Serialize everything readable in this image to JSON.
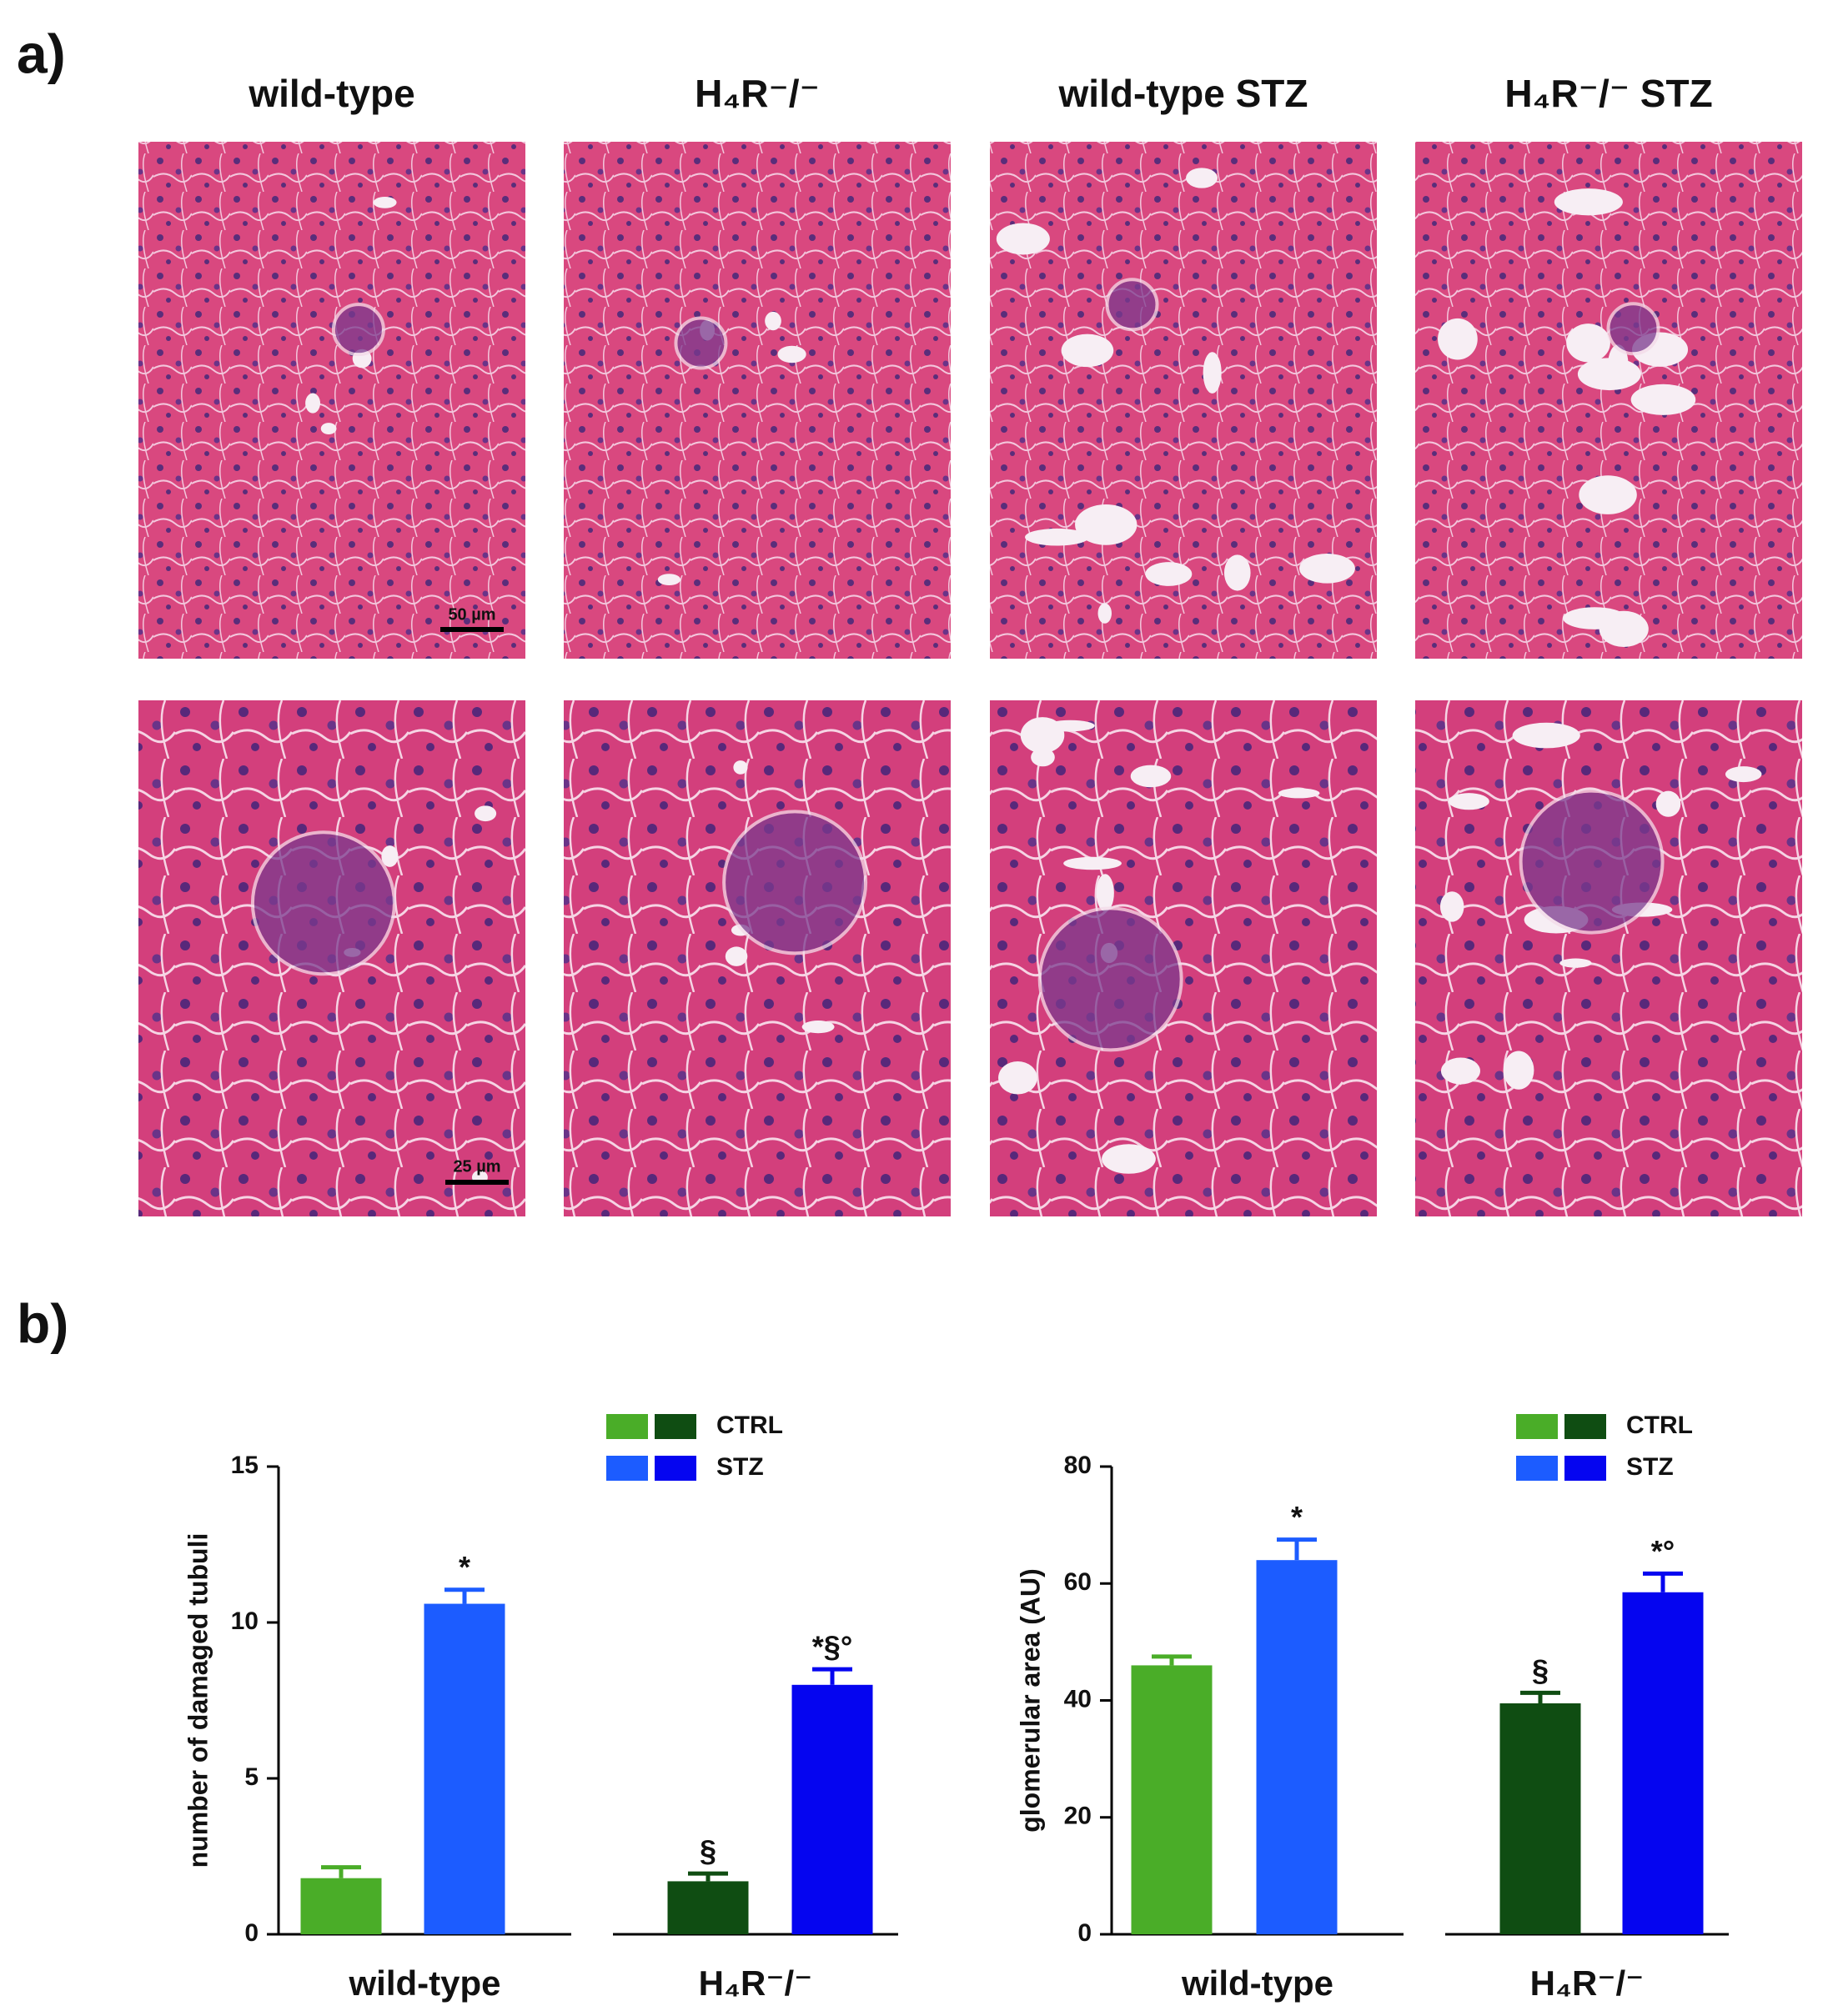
{
  "panel_a": {
    "label": "a)",
    "columns": [
      "wild-type",
      "H₄R⁻/⁻",
      "wild-type STZ",
      "H₄R⁻/⁻ STZ"
    ],
    "scale_bars": [
      "50 µm",
      "25 µm"
    ]
  },
  "panel_b": {
    "label": "b)"
  },
  "chart_data": [
    {
      "type": "bar",
      "y_label": "number of damaged tubuli",
      "categories": [
        "wild-type",
        "H₄R⁻/⁻"
      ],
      "series": [
        {
          "name": "CTRL",
          "colors": [
            "#4aad28",
            "#0f4d12"
          ],
          "values": [
            1.8,
            1.7
          ],
          "errors": [
            0.35,
            0.25
          ],
          "annotations": [
            null,
            "§"
          ]
        },
        {
          "name": "STZ",
          "colors": [
            "#1c5cff",
            "#0505f0"
          ],
          "values": [
            10.6,
            8.0
          ],
          "errors": [
            0.45,
            0.5
          ],
          "annotations": [
            "*",
            "*§°"
          ]
        }
      ],
      "ylim": [
        0,
        15
      ],
      "yticks": [
        0,
        5,
        10,
        15
      ],
      "grid": false,
      "legend": "top-right"
    },
    {
      "type": "bar",
      "y_label": "glomerular area (AU)",
      "categories": [
        "wild-type",
        "H₄R⁻/⁻"
      ],
      "series": [
        {
          "name": "CTRL",
          "colors": [
            "#4aad28",
            "#0f4d12"
          ],
          "values": [
            46,
            39.5
          ],
          "errors": [
            1.5,
            1.8
          ],
          "annotations": [
            null,
            "§"
          ]
        },
        {
          "name": "STZ",
          "colors": [
            "#1c5cff",
            "#0505f0"
          ],
          "values": [
            64,
            58.5
          ],
          "errors": [
            3.5,
            3.2
          ],
          "annotations": [
            "*",
            "*°"
          ]
        }
      ],
      "ylim": [
        0,
        80
      ],
      "yticks": [
        0,
        20,
        40,
        60,
        80
      ],
      "grid": false,
      "legend": "top-right"
    }
  ]
}
